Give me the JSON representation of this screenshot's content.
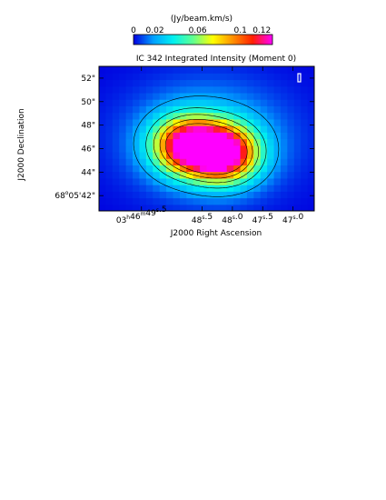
{
  "chart_data": {
    "type": "heatmap",
    "title": "IC 342 Integrated Intensity (Moment 0)",
    "colorbar": {
      "unit_label": "(Jy/beam.km/s)",
      "tick_labels": [
        "0",
        "0.02",
        "0.06",
        "0.1",
        "0.12"
      ],
      "tick_values": [
        0,
        0.02,
        0.06,
        0.1,
        0.12
      ],
      "range": [
        0,
        0.13
      ],
      "colormap": [
        "#0000e0",
        "#00a0ff",
        "#00f0f0",
        "#60ff90",
        "#ffff00",
        "#ff9000",
        "#ff2000",
        "#ff00ff"
      ]
    },
    "xlabel": "J2000 Right Ascension",
    "ylabel": "J2000 Declination",
    "x_ticks": [
      {
        "value": 49.5,
        "label_main": "03",
        "sup1": "h",
        "mid": "46",
        "sup2": "m",
        "sec": "49",
        "sup3": "s",
        "frac": ".5"
      },
      {
        "value": 48.5,
        "label_main": "",
        "sup1": "",
        "mid": "",
        "sup2": "",
        "sec": "48",
        "sup3": "s",
        "frac": ".5"
      },
      {
        "value": 48.0,
        "label_main": "",
        "sup1": "",
        "mid": "",
        "sup2": "",
        "sec": "48",
        "sup3": "s",
        "frac": ".0"
      },
      {
        "value": 47.5,
        "label_main": "",
        "sup1": "",
        "mid": "",
        "sup2": "",
        "sec": "47",
        "sup3": "s",
        "frac": ".5"
      },
      {
        "value": 47.0,
        "label_main": "",
        "sup1": "",
        "mid": "",
        "sup2": "",
        "sec": "47",
        "sup3": "s",
        "frac": ".0"
      }
    ],
    "y_ticks": [
      {
        "value": 52,
        "label": "52\""
      },
      {
        "value": 50,
        "label": "50\""
      },
      {
        "value": 48,
        "label": "48\""
      },
      {
        "value": 46,
        "label": "46\""
      },
      {
        "value": 44,
        "label": "44\""
      },
      {
        "value": 42,
        "label_deg": "68",
        "label_min": "05'42\""
      }
    ],
    "xlim": [
      50.2,
      46.65
    ],
    "ylim": [
      40.7,
      53.0
    ],
    "grid": false,
    "peaks": [
      {
        "ra": 48.15,
        "dec": 45.6,
        "intensity": 0.125
      },
      {
        "ra": 48.75,
        "dec": 46.3,
        "intensity": 0.11
      }
    ],
    "contour_levels": [
      0.02,
      0.04,
      0.06,
      0.08,
      0.1
    ]
  }
}
